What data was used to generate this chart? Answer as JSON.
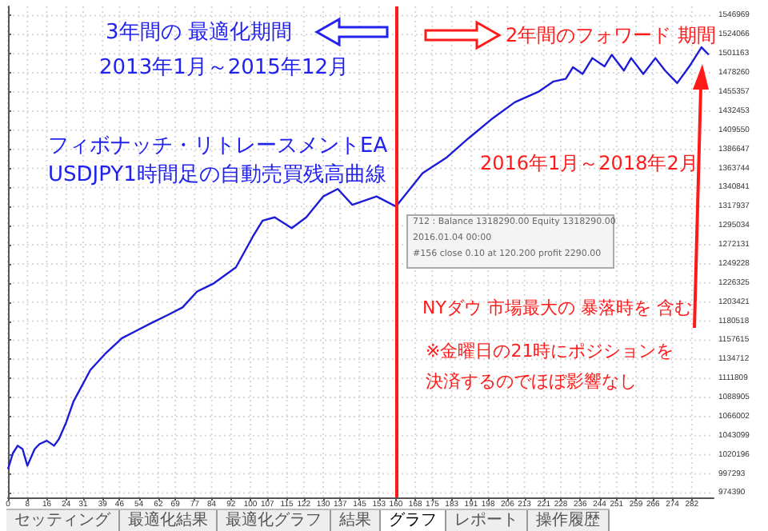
{
  "chart_data": {
    "type": "line",
    "color": "#1c1cd8",
    "x": [
      0,
      2,
      4,
      6,
      8,
      11,
      13,
      16,
      19,
      21,
      24,
      27,
      34,
      40,
      47,
      53,
      59,
      66,
      72,
      78,
      85,
      94,
      101,
      105,
      110,
      117,
      123,
      130,
      136,
      142,
      152,
      160,
      171,
      181,
      190,
      200,
      209,
      219,
      225,
      230,
      233,
      237,
      241,
      246,
      249,
      254,
      257,
      262,
      267,
      271,
      276,
      281,
      286,
      289
    ],
    "values": [
      1003000,
      1022000,
      1031000,
      1027000,
      1007000,
      1027000,
      1033000,
      1037000,
      1031000,
      1039000,
      1059000,
      1084000,
      1122000,
      1141000,
      1160000,
      1169000,
      1178000,
      1188000,
      1197000,
      1216000,
      1226000,
      1245000,
      1282000,
      1301000,
      1305000,
      1292000,
      1305000,
      1330000,
      1339000,
      1320000,
      1330000,
      1318000,
      1358000,
      1377000,
      1400000,
      1424000,
      1443000,
      1456000,
      1468000,
      1471000,
      1485000,
      1477000,
      1496000,
      1486000,
      1500000,
      1481000,
      1496000,
      1477000,
      1496000,
      1481000,
      1466000,
      1486000,
      1509000,
      1500000
    ],
    "xlim": [
      0,
      291
    ],
    "xticks": [
      0,
      8,
      16,
      24,
      31,
      39,
      46,
      54,
      62,
      69,
      77,
      84,
      92,
      100,
      107,
      115,
      122,
      130,
      137,
      145,
      153,
      160,
      168,
      175,
      183,
      191,
      198,
      206,
      213,
      221,
      228,
      236,
      244,
      251,
      259,
      266,
      274,
      282
    ],
    "ylim": [
      969000,
      1558000
    ],
    "yticks": [
      974390,
      997293,
      1020196,
      1043099,
      1066002,
      1088905,
      1111809,
      1134712,
      1157615,
      1180518,
      1203421,
      1226325,
      1249228,
      1272131,
      1295034,
      1317937,
      1340841,
      1363744,
      1386647,
      1409550,
      1432453,
      1455357,
      1478260,
      1501163,
      1524066,
      1546969
    ],
    "grid": true,
    "marker": "none",
    "line_style": "solid",
    "ref_lines": [
      {
        "axis": "x",
        "value": 160,
        "color": "#ff1a1a"
      }
    ],
    "annotations": [
      "3年間の 最適化期間",
      "2013年1月～2015年12月",
      "フィボナッチ・リトレースメントEA",
      "USDJPY1時間足の自動売買残高曲線",
      "2年間のフォワード 期間",
      "2016年1月～2018年2月",
      "NYダウ 市場最大の 暴落時を 含む",
      "※金曜日の21時にポジションを",
      "決済するのでほぼ影響なし",
      "712 : Balance 1318290.00 Equity 1318290.00",
      "2016.01.04 00:00",
      "#156 close 0.10 at 120.200 profit 2290.00",
      "セッティング",
      "最適化結果",
      "最適化グラフ",
      "結果",
      "グラフ",
      "レポート",
      "操作履歴"
    ]
  }
}
